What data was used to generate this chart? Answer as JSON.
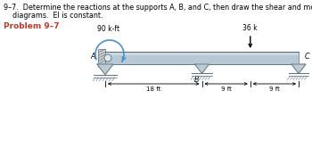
{
  "title_line1": "9–7.  Determine the reactions at the supports A, B, and C, then draw the shear and moment",
  "title_line2": "diagrams.  EI is constant.",
  "problem_label": "Problem 9–7",
  "moment_label": "90 k-ft",
  "force_label": "36 k",
  "dim_AB": "18 ft",
  "dim_B_mid": "9 ft",
  "dim_mid_C": "9 ft",
  "label_A": "A",
  "label_B": "B",
  "label_C": "C",
  "beam_fill": "#b8c8d4",
  "beam_top_fill": "#8fa8ba",
  "beam_edge": "#5a7080",
  "support_fill": "#c0ccd4",
  "support_edge": "#5a7080",
  "moment_color": "#4a90d0",
  "background_color": "#ffffff",
  "text_color": "#000000",
  "problem_color": "#c0392b",
  "title_fontsize": 5.8,
  "problem_fontsize": 6.5,
  "label_fontsize": 5.8,
  "dim_fontsize": 5.0
}
